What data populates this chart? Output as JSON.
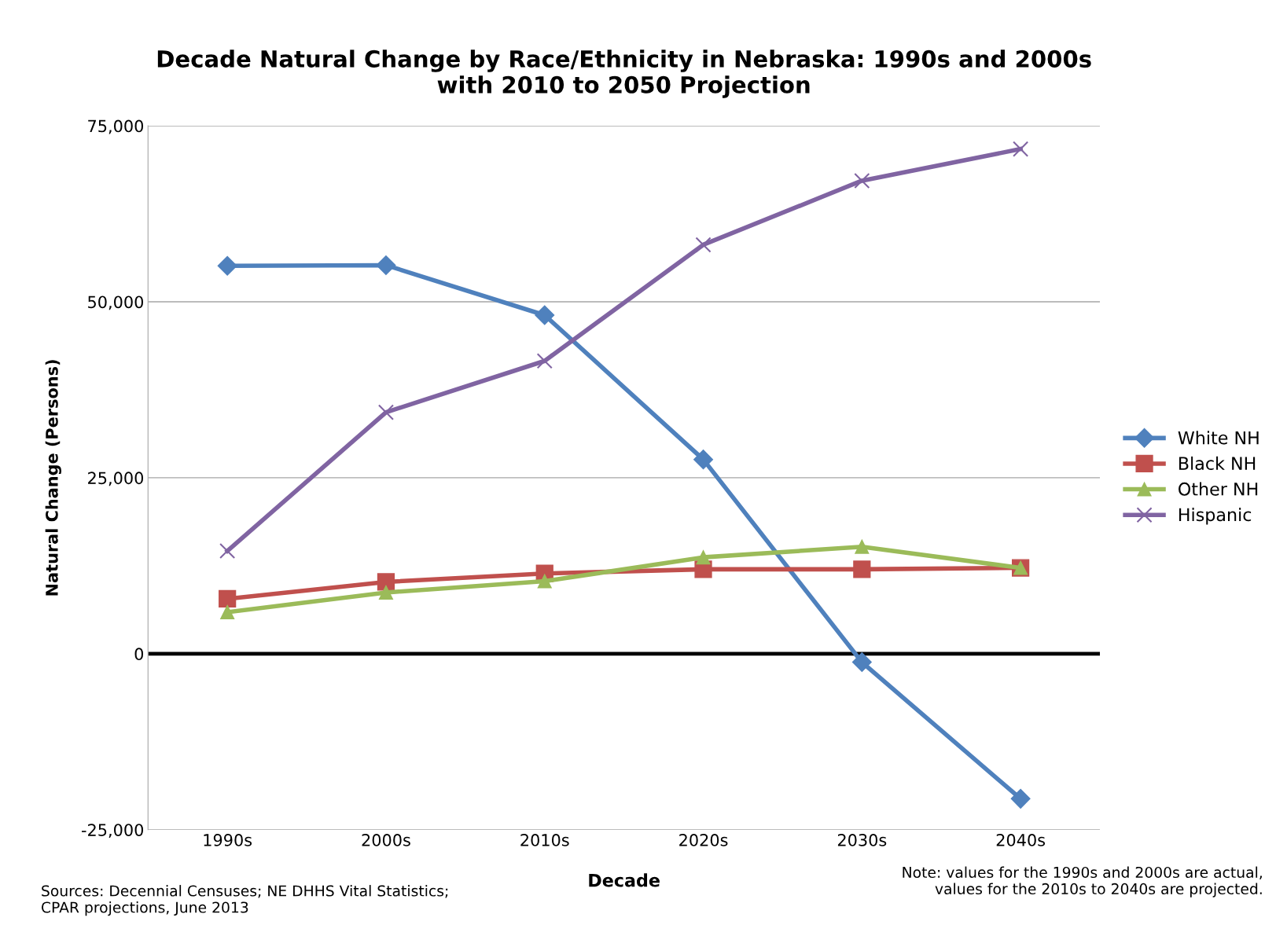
{
  "chart_data": {
    "type": "line",
    "title": "Decade Natural Change by Race/Ethnicity in Nebraska: 1990s and 2000s\nwith 2010 to 2050 Projection",
    "xlabel": "Decade",
    "ylabel": "Natural Change (Persons)",
    "categories": [
      "1990s",
      "2000s",
      "2010s",
      "2020s",
      "2030s",
      "2040s"
    ],
    "series": [
      {
        "name": "White NH",
        "color": "#4f81bd",
        "marker": "diamond",
        "values": [
          55100,
          55200,
          48100,
          27600,
          -1200,
          -20600
        ]
      },
      {
        "name": "Black NH",
        "color": "#c0504d",
        "marker": "square",
        "values": [
          7800,
          10200,
          11400,
          12000,
          12000,
          12200
        ]
      },
      {
        "name": "Other NH",
        "color": "#9bbb59",
        "marker": "triangle",
        "values": [
          5900,
          8700,
          10300,
          13700,
          15200,
          12200
        ]
      },
      {
        "name": "Hispanic",
        "color": "#8064a2",
        "marker": "cross",
        "values": [
          14600,
          34300,
          41600,
          58100,
          67200,
          71700
        ]
      }
    ],
    "ylim": [
      -25000,
      75000
    ],
    "yticks": [
      {
        "value": -25000,
        "label": "-25,000"
      },
      0,
      {
        "value": 25000,
        "label": "25,000"
      },
      {
        "value": 50000,
        "label": "50,000"
      },
      {
        "value": 75000,
        "label": "75,000"
      }
    ],
    "ref_lines": [
      {
        "axis": "y",
        "value": 0,
        "color": "#000000"
      }
    ],
    "grid": "y",
    "legend": "right",
    "line_style": "solid",
    "annotations": [
      "Sources: Decennial Censuses; NE DHHS Vital Statistics;\nCPAR projections, June 2013",
      "Note: values for the 1990s and 2000s are actual,\nvalues for the 2010s to 2040s are projected."
    ]
  }
}
